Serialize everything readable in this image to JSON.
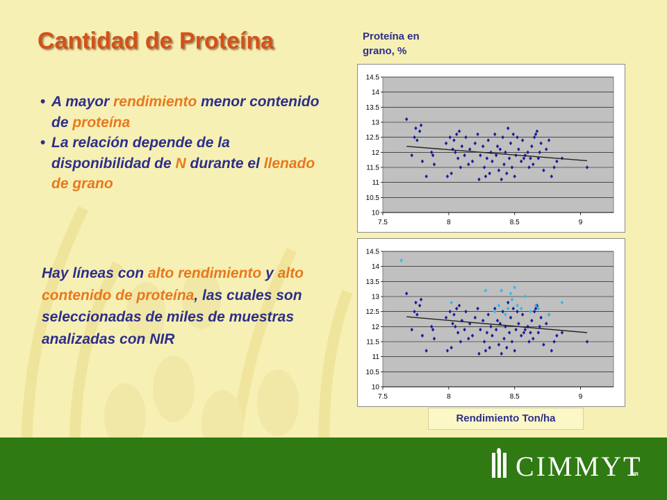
{
  "slide": {
    "title": "Cantidad de Proteína",
    "bullets": [
      [
        {
          "t": "A mayor ",
          "c": "blue"
        },
        {
          "t": "rendimiento",
          "c": "org"
        },
        {
          "t": " menor contenido de ",
          "c": "blue"
        },
        {
          "t": "proteína",
          "c": "org"
        }
      ],
      [
        {
          "t": "La relación depende de la disponibilidad de ",
          "c": "blue"
        },
        {
          "t": "N",
          "c": "org"
        },
        {
          "t": " durante el ",
          "c": "blue"
        },
        {
          "t": "llenado de grano",
          "c": "org"
        }
      ]
    ],
    "paragraph": [
      {
        "t": "Hay líneas con ",
        "c": "blue"
      },
      {
        "t": "alto rendimiento",
        "c": "org"
      },
      {
        "t": " y ",
        "c": "blue"
      },
      {
        "t": "alto contenido de proteína",
        "c": "org"
      },
      {
        "t": ", las cuales son seleccionadas de miles de muestras analizadas con NIR",
        "c": "blue"
      }
    ],
    "ylabel": "Proteína en grano, %",
    "xlabel": "Rendimiento Ton/ha",
    "logo": {
      "text": "CIMMYT",
      "mark": "MR"
    },
    "colors": {
      "background": "#f7f0b4",
      "title": "#d2521a",
      "text_blue": "#2c2f8a",
      "text_orange": "#e8781e",
      "footer": "#2f7a13",
      "points": "#1a1e96",
      "points_highlight": "#33b8e8",
      "trendline": "#222222",
      "plot_area": "#c0c0c0"
    }
  },
  "chart_data": [
    {
      "type": "scatter",
      "xlim": [
        7.5,
        9.25
      ],
      "ylim": [
        10,
        14.5
      ],
      "xticks": [
        "7.5",
        "8",
        "8.5",
        "9"
      ],
      "yticks": [
        "10",
        "10.5",
        "11",
        "11.5",
        "12",
        "12.5",
        "13",
        "13.5",
        "14",
        "14.5"
      ],
      "grid": true,
      "trendline": [
        [
          7.68,
          12.2
        ],
        [
          9.05,
          11.72
        ]
      ],
      "series": [
        {
          "points": [
            [
              7.68,
              13.1
            ],
            [
              7.72,
              11.9
            ],
            [
              7.74,
              12.5
            ],
            [
              7.75,
              12.8
            ],
            [
              7.76,
              12.4
            ],
            [
              7.78,
              12.7
            ],
            [
              7.79,
              12.9
            ],
            [
              7.8,
              11.7
            ],
            [
              7.83,
              11.2
            ],
            [
              7.87,
              12.0
            ],
            [
              7.88,
              11.9
            ],
            [
              7.89,
              11.6
            ],
            [
              7.98,
              12.3
            ],
            [
              7.99,
              11.2
            ],
            [
              8.01,
              12.5
            ],
            [
              8.02,
              11.3
            ],
            [
              8.03,
              12.1
            ],
            [
              8.04,
              12.4
            ],
            [
              8.05,
              12.0
            ],
            [
              8.06,
              12.6
            ],
            [
              8.07,
              11.8
            ],
            [
              8.08,
              12.7
            ],
            [
              8.09,
              11.5
            ],
            [
              8.1,
              12.2
            ],
            [
              8.12,
              11.9
            ],
            [
              8.13,
              12.5
            ],
            [
              8.15,
              11.6
            ],
            [
              8.16,
              12.1
            ],
            [
              8.18,
              11.7
            ],
            [
              8.2,
              12.3
            ],
            [
              8.22,
              12.6
            ],
            [
              8.23,
              11.1
            ],
            [
              8.24,
              11.9
            ],
            [
              8.26,
              12.2
            ],
            [
              8.27,
              11.5
            ],
            [
              8.28,
              11.2
            ],
            [
              8.29,
              11.8
            ],
            [
              8.3,
              12.4
            ],
            [
              8.31,
              11.3
            ],
            [
              8.32,
              12.0
            ],
            [
              8.33,
              11.7
            ],
            [
              8.35,
              12.6
            ],
            [
              8.36,
              11.9
            ],
            [
              8.37,
              12.2
            ],
            [
              8.38,
              11.4
            ],
            [
              8.39,
              12.1
            ],
            [
              8.4,
              11.1
            ],
            [
              8.41,
              12.5
            ],
            [
              8.42,
              11.6
            ],
            [
              8.43,
              12.0
            ],
            [
              8.44,
              11.3
            ],
            [
              8.45,
              12.8
            ],
            [
              8.46,
              11.8
            ],
            [
              8.47,
              12.3
            ],
            [
              8.48,
              11.5
            ],
            [
              8.49,
              12.6
            ],
            [
              8.5,
              11.2
            ],
            [
              8.51,
              11.9
            ],
            [
              8.52,
              12.5
            ],
            [
              8.53,
              12.1
            ],
            [
              8.55,
              11.7
            ],
            [
              8.56,
              12.4
            ],
            [
              8.57,
              11.8
            ],
            [
              8.58,
              11.9
            ],
            [
              8.6,
              12.0
            ],
            [
              8.61,
              11.5
            ],
            [
              8.62,
              11.8
            ],
            [
              8.63,
              12.2
            ],
            [
              8.64,
              11.6
            ],
            [
              8.65,
              12.5
            ],
            [
              8.66,
              12.6
            ],
            [
              8.67,
              12.7
            ],
            [
              8.68,
              11.8
            ],
            [
              8.69,
              12.0
            ],
            [
              8.7,
              12.3
            ],
            [
              8.72,
              11.4
            ],
            [
              8.74,
              12.1
            ],
            [
              8.76,
              12.4
            ],
            [
              8.78,
              11.2
            ],
            [
              8.8,
              11.5
            ],
            [
              8.82,
              11.7
            ],
            [
              8.86,
              11.8
            ],
            [
              9.05,
              11.5
            ]
          ]
        }
      ]
    },
    {
      "type": "scatter",
      "xlim": [
        7.5,
        9.25
      ],
      "ylim": [
        10,
        14.5
      ],
      "xticks": [
        "7.5",
        "8",
        "8.5",
        "9"
      ],
      "yticks": [
        "10",
        "10.5",
        "11",
        "11.5",
        "12",
        "12.5",
        "13",
        "13.5",
        "14",
        "14.5"
      ],
      "grid": true,
      "trendline": [
        [
          7.68,
          12.33
        ],
        [
          9.05,
          11.8
        ]
      ],
      "series": [
        {
          "points": [
            [
              7.68,
              13.1
            ],
            [
              7.72,
              11.9
            ],
            [
              7.74,
              12.5
            ],
            [
              7.75,
              12.8
            ],
            [
              7.76,
              12.4
            ],
            [
              7.78,
              12.7
            ],
            [
              7.79,
              12.9
            ],
            [
              7.8,
              11.7
            ],
            [
              7.83,
              11.2
            ],
            [
              7.87,
              12.0
            ],
            [
              7.88,
              11.9
            ],
            [
              7.89,
              11.6
            ],
            [
              7.98,
              12.3
            ],
            [
              7.99,
              11.2
            ],
            [
              8.01,
              12.5
            ],
            [
              8.02,
              11.3
            ],
            [
              8.03,
              12.1
            ],
            [
              8.04,
              12.4
            ],
            [
              8.05,
              12.0
            ],
            [
              8.06,
              12.6
            ],
            [
              8.07,
              11.8
            ],
            [
              8.08,
              12.7
            ],
            [
              8.09,
              11.5
            ],
            [
              8.1,
              12.2
            ],
            [
              8.12,
              11.9
            ],
            [
              8.13,
              12.5
            ],
            [
              8.15,
              11.6
            ],
            [
              8.16,
              12.1
            ],
            [
              8.18,
              11.7
            ],
            [
              8.2,
              12.3
            ],
            [
              8.22,
              12.6
            ],
            [
              8.23,
              11.1
            ],
            [
              8.24,
              11.9
            ],
            [
              8.26,
              12.2
            ],
            [
              8.27,
              11.5
            ],
            [
              8.28,
              11.2
            ],
            [
              8.29,
              11.8
            ],
            [
              8.3,
              12.4
            ],
            [
              8.31,
              11.3
            ],
            [
              8.32,
              12.0
            ],
            [
              8.33,
              11.7
            ],
            [
              8.35,
              12.6
            ],
            [
              8.36,
              11.9
            ],
            [
              8.37,
              12.2
            ],
            [
              8.38,
              11.4
            ],
            [
              8.39,
              12.1
            ],
            [
              8.4,
              11.1
            ],
            [
              8.41,
              12.5
            ],
            [
              8.42,
              11.6
            ],
            [
              8.43,
              12.0
            ],
            [
              8.44,
              11.3
            ],
            [
              8.45,
              12.8
            ],
            [
              8.46,
              11.8
            ],
            [
              8.47,
              12.3
            ],
            [
              8.48,
              11.5
            ],
            [
              8.49,
              12.6
            ],
            [
              8.5,
              11.2
            ],
            [
              8.51,
              11.9
            ],
            [
              8.52,
              12.5
            ],
            [
              8.53,
              12.1
            ],
            [
              8.55,
              11.7
            ],
            [
              8.56,
              12.4
            ],
            [
              8.57,
              11.8
            ],
            [
              8.58,
              11.9
            ],
            [
              8.6,
              12.0
            ],
            [
              8.61,
              11.5
            ],
            [
              8.62,
              11.8
            ],
            [
              8.63,
              12.2
            ],
            [
              8.64,
              11.6
            ],
            [
              8.65,
              12.5
            ],
            [
              8.66,
              12.6
            ],
            [
              8.67,
              12.7
            ],
            [
              8.68,
              11.8
            ],
            [
              8.69,
              12.0
            ],
            [
              8.7,
              12.3
            ],
            [
              8.72,
              11.4
            ],
            [
              8.74,
              12.1
            ],
            [
              8.76,
              12.4
            ],
            [
              8.78,
              11.2
            ],
            [
              8.8,
              11.5
            ],
            [
              8.82,
              11.7
            ],
            [
              8.86,
              11.8
            ],
            [
              9.05,
              11.5
            ]
          ]
        },
        {
          "highlight": true,
          "points": [
            [
              7.64,
              14.2
            ],
            [
              8.02,
              12.8
            ],
            [
              8.28,
              13.2
            ],
            [
              8.35,
              12.5
            ],
            [
              8.38,
              12.7
            ],
            [
              8.4,
              13.2
            ],
            [
              8.43,
              12.4
            ],
            [
              8.45,
              12.6
            ],
            [
              8.47,
              13.1
            ],
            [
              8.48,
              12.9
            ],
            [
              8.5,
              13.3
            ],
            [
              8.52,
              12.7
            ],
            [
              8.55,
              12.6
            ],
            [
              8.58,
              13.0
            ],
            [
              8.62,
              12.5
            ],
            [
              8.66,
              12.7
            ],
            [
              8.68,
              12.6
            ],
            [
              8.76,
              12.4
            ],
            [
              8.86,
              12.8
            ]
          ]
        }
      ]
    }
  ]
}
